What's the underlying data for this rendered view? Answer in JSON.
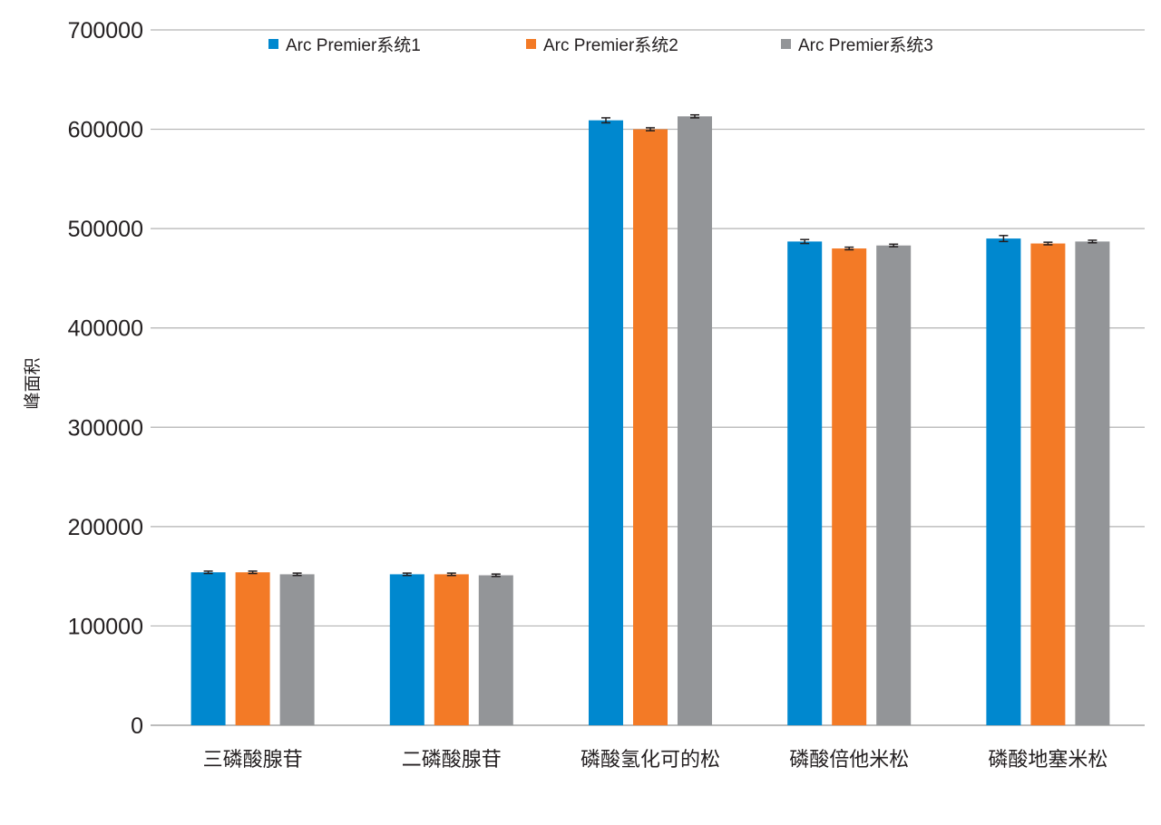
{
  "chart_data": {
    "type": "bar",
    "title": "",
    "xlabel": "",
    "ylabel": "峰面积",
    "ylim": [
      0,
      700000
    ],
    "yticks": [
      0,
      100000,
      200000,
      300000,
      400000,
      500000,
      600000,
      700000
    ],
    "grid": true,
    "legend_position": "top",
    "categories": [
      "三磷酸腺苷",
      "二磷酸腺苷",
      "磷酸氢化可的松",
      "磷酸倍他米松",
      "磷酸地塞米松"
    ],
    "series": [
      {
        "name": "Arc Premier系统1",
        "color": "#0088cf",
        "values": [
          154000,
          152000,
          609000,
          487000,
          490000
        ],
        "errors": [
          1200,
          1200,
          2500,
          2000,
          3000
        ]
      },
      {
        "name": "Arc Premier系统2",
        "color": "#f37a26",
        "values": [
          154000,
          152000,
          600000,
          480000,
          485000
        ],
        "errors": [
          1200,
          1200,
          1500,
          1300,
          1300
        ]
      },
      {
        "name": "Arc Premier系统3",
        "color": "#939598",
        "values": [
          152000,
          151000,
          613000,
          483000,
          487000
        ],
        "errors": [
          1200,
          1200,
          1500,
          1300,
          1300
        ]
      }
    ]
  }
}
